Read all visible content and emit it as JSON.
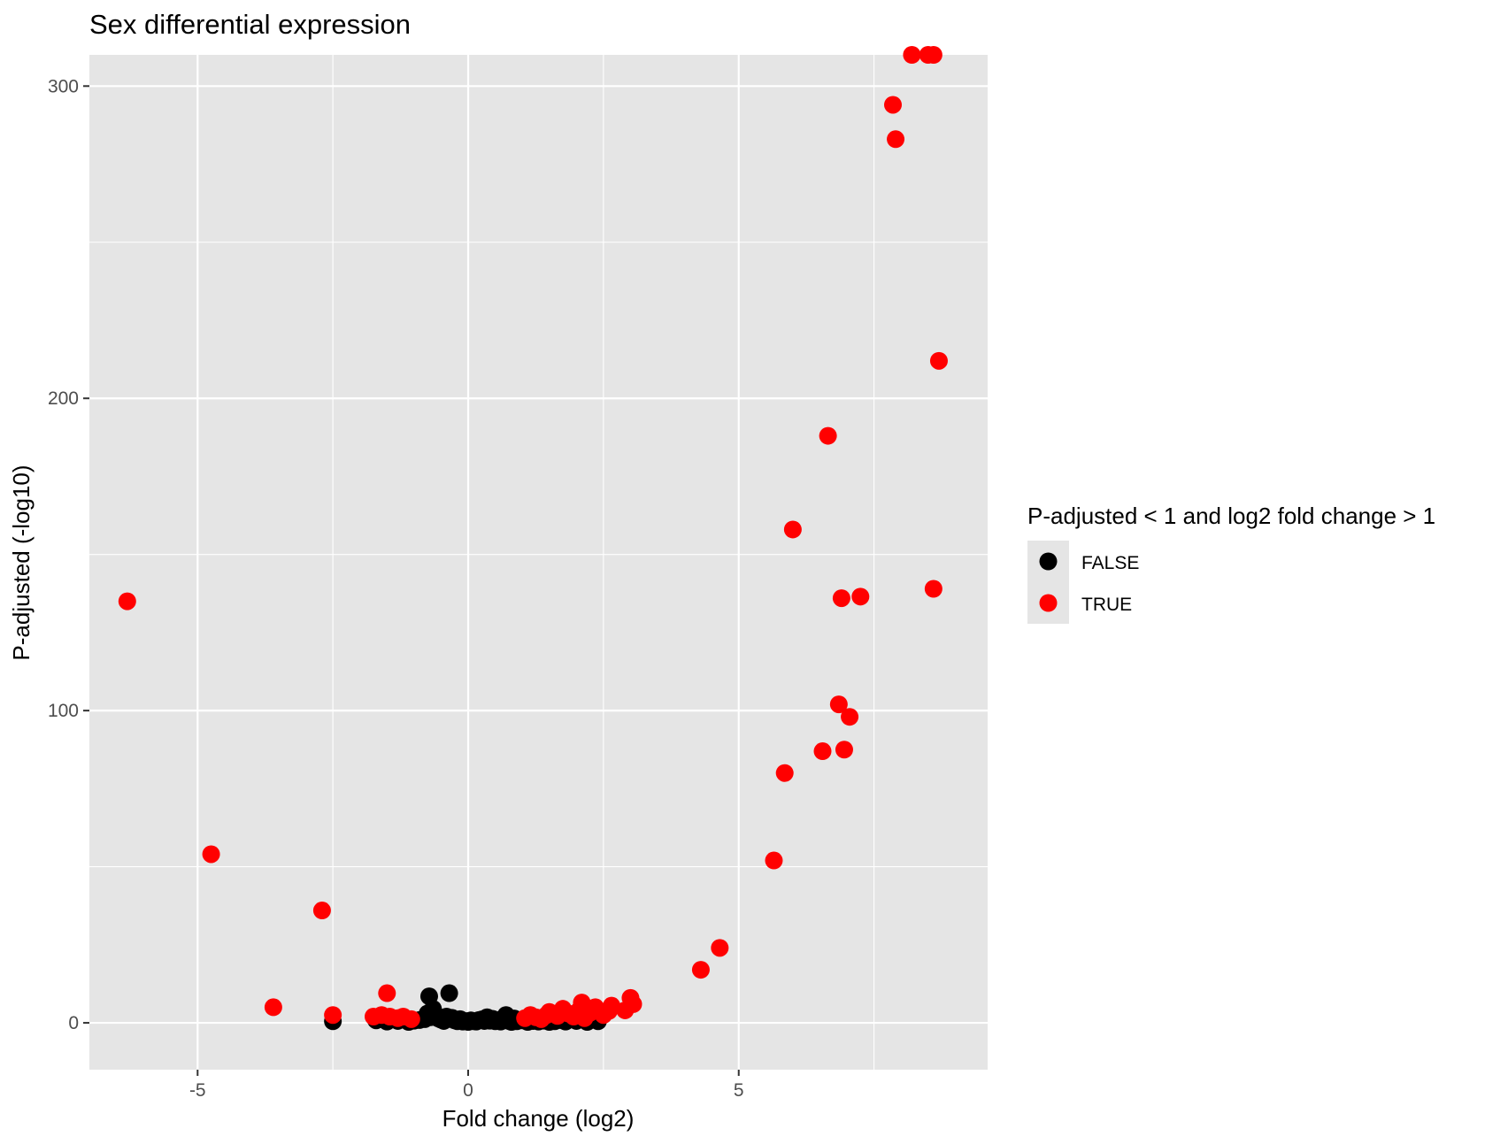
{
  "chart_data": {
    "type": "scatter",
    "title": "Sex differential expression",
    "xlabel": "Fold change (log2)",
    "ylabel": "P-adjusted (-log10)",
    "xlim": [
      -7.0,
      9.6
    ],
    "ylim": [
      -15,
      310
    ],
    "x_ticks": [
      -5,
      0,
      5
    ],
    "x_tick_labels": [
      "-5",
      "0",
      "5"
    ],
    "y_ticks": [
      0,
      100,
      200,
      300
    ],
    "y_tick_labels": [
      "0",
      "100",
      "200",
      "300"
    ],
    "grid": true,
    "legend": {
      "title": "P-adjusted < 1 and log2 fold change > 1",
      "position": "right",
      "entries": [
        {
          "label": "FALSE",
          "color": "#000000"
        },
        {
          "label": "TRUE",
          "color": "#ff0000"
        }
      ]
    },
    "colors": {
      "panel_bg": "#e5e5e5",
      "grid": "#ffffff",
      "false": "#000000",
      "true": "#ff0000"
    },
    "series": [
      {
        "name": "FALSE",
        "color": "#000000",
        "points": [
          [
            -2.5,
            0.5
          ],
          [
            -1.7,
            0.8
          ],
          [
            -1.5,
            0.4
          ],
          [
            -1.3,
            0.6
          ],
          [
            -1.1,
            0.3
          ],
          [
            -1.0,
            0.7
          ],
          [
            -0.9,
            0.9
          ],
          [
            -0.8,
            1.2
          ],
          [
            -0.75,
            3.0
          ],
          [
            -0.7,
            1.8
          ],
          [
            -0.72,
            8.5
          ],
          [
            -0.65,
            4.5
          ],
          [
            -0.6,
            2.5
          ],
          [
            -0.55,
            1.4
          ],
          [
            -0.5,
            1.0
          ],
          [
            -0.45,
            0.6
          ],
          [
            -0.4,
            2.0
          ],
          [
            -0.35,
            9.5
          ],
          [
            -0.3,
            1.6
          ],
          [
            -0.25,
            0.8
          ],
          [
            -0.2,
            0.5
          ],
          [
            -0.15,
            1.2
          ],
          [
            -0.1,
            0.4
          ],
          [
            -0.05,
            0.6
          ],
          [
            0.0,
            0.3
          ],
          [
            0.05,
            0.8
          ],
          [
            0.1,
            0.5
          ],
          [
            0.15,
            0.4
          ],
          [
            0.2,
            0.9
          ],
          [
            0.25,
            1.1
          ],
          [
            0.3,
            0.6
          ],
          [
            0.35,
            1.8
          ],
          [
            0.4,
            0.7
          ],
          [
            0.45,
            1.3
          ],
          [
            0.5,
            0.5
          ],
          [
            0.55,
            0.9
          ],
          [
            0.6,
            0.4
          ],
          [
            0.65,
            1.0
          ],
          [
            0.7,
            2.5
          ],
          [
            0.75,
            0.6
          ],
          [
            0.8,
            0.3
          ],
          [
            0.85,
            1.4
          ],
          [
            0.9,
            0.5
          ],
          [
            1.0,
            0.8
          ],
          [
            1.1,
            0.3
          ],
          [
            1.2,
            0.6
          ],
          [
            1.3,
            0.4
          ],
          [
            1.4,
            0.7
          ],
          [
            1.5,
            0.3
          ],
          [
            1.6,
            0.5
          ],
          [
            1.7,
            0.9
          ],
          [
            1.8,
            0.4
          ],
          [
            2.0,
            0.6
          ],
          [
            2.2,
            0.3
          ],
          [
            2.4,
            0.5
          ]
        ]
      },
      {
        "name": "TRUE",
        "color": "#ff0000",
        "points": [
          [
            -6.3,
            135
          ],
          [
            -4.75,
            54
          ],
          [
            -3.6,
            5
          ],
          [
            -2.7,
            36
          ],
          [
            -2.5,
            2.5
          ],
          [
            -1.75,
            2
          ],
          [
            -1.6,
            2.5
          ],
          [
            -1.5,
            9.5
          ],
          [
            -1.45,
            2
          ],
          [
            -1.3,
            1.5
          ],
          [
            -1.2,
            2
          ],
          [
            -1.05,
            1.2
          ],
          [
            1.05,
            1.5
          ],
          [
            1.15,
            2.5
          ],
          [
            1.25,
            1.8
          ],
          [
            1.35,
            1.2
          ],
          [
            1.45,
            2.5
          ],
          [
            1.5,
            3.5
          ],
          [
            1.65,
            2.2
          ],
          [
            1.75,
            4.5
          ],
          [
            1.85,
            3.0
          ],
          [
            1.95,
            2.0
          ],
          [
            2.05,
            4.0
          ],
          [
            2.1,
            6.5
          ],
          [
            2.15,
            1.5
          ],
          [
            2.25,
            3.2
          ],
          [
            2.35,
            5.0
          ],
          [
            2.5,
            2.5
          ],
          [
            2.6,
            3.8
          ],
          [
            2.65,
            5.5
          ],
          [
            2.9,
            4.0
          ],
          [
            3.0,
            8.0
          ],
          [
            3.05,
            6.0
          ],
          [
            4.3,
            17
          ],
          [
            4.65,
            24
          ],
          [
            5.65,
            52
          ],
          [
            5.85,
            80
          ],
          [
            6.0,
            158
          ],
          [
            6.55,
            87
          ],
          [
            6.65,
            188
          ],
          [
            6.85,
            102
          ],
          [
            6.9,
            136
          ],
          [
            6.95,
            87.5
          ],
          [
            7.05,
            98
          ],
          [
            7.25,
            136.5
          ],
          [
            7.85,
            294
          ],
          [
            7.9,
            283
          ],
          [
            8.2,
            310
          ],
          [
            8.5,
            310
          ],
          [
            8.6,
            310
          ],
          [
            8.6,
            139
          ],
          [
            8.7,
            212
          ]
        ]
      }
    ]
  }
}
